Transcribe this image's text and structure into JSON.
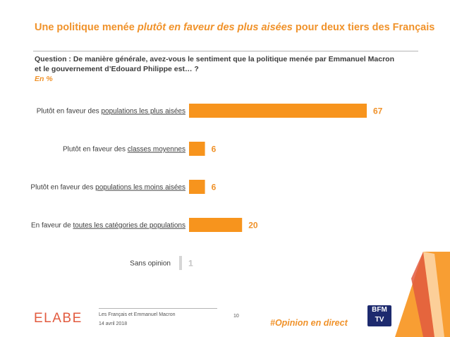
{
  "header": {
    "title_pre": "Une politique menée ",
    "title_em": "plutôt en faveur des plus aisées",
    "title_post": " pour deux tiers des Français",
    "question": "Question : De manière générale, avez-vous le sentiment que la politique menée par Emmanuel Macron et le gouvernement d’Edouard Philippe est… ?",
    "unit": "En %"
  },
  "chart_data": {
    "type": "bar",
    "orientation": "horizontal",
    "categories": [
      "Plutôt en faveur des populations les plus aisées",
      "Plutôt en faveur des classes moyennes",
      "Plutôt en faveur des populations les moins aisées",
      "En faveur de toutes les catégories de populations",
      "Sans opinion"
    ],
    "category_prefix": [
      "Plutôt en faveur des ",
      "Plutôt en faveur des ",
      "Plutôt en faveur des ",
      "En faveur de ",
      ""
    ],
    "category_underlined": [
      "populations les plus aisées",
      "classes moyennes",
      "populations les moins aisées",
      "toutes les catégories de populations",
      ""
    ],
    "category_text": [
      "",
      "",
      "",
      "",
      "Sans opinion"
    ],
    "values": [
      67,
      6,
      6,
      20,
      1
    ],
    "value_labels": [
      "67",
      "6",
      "6",
      "20",
      "1"
    ],
    "colors": [
      "#f7941d",
      "#f7941d",
      "#f7941d",
      "#f7941d",
      "#d6d6d6"
    ],
    "value_label_colors": [
      "#f0922a",
      "#f0922a",
      "#f0922a",
      "#f0922a",
      "#c4c4c4"
    ],
    "xlim": [
      0,
      67
    ],
    "grid": false,
    "legend": "none"
  },
  "footer": {
    "logo": "ELABE",
    "line1": "Les Français et Emmanuel Macron",
    "line2": "14 avril 2018",
    "page": "10",
    "hashtag": "#Opinion en direct",
    "tv_logo": "BFM TV"
  },
  "colors": {
    "accent": "#f0922a",
    "bar": "#f7941d",
    "muted": "#d6d6d6"
  }
}
